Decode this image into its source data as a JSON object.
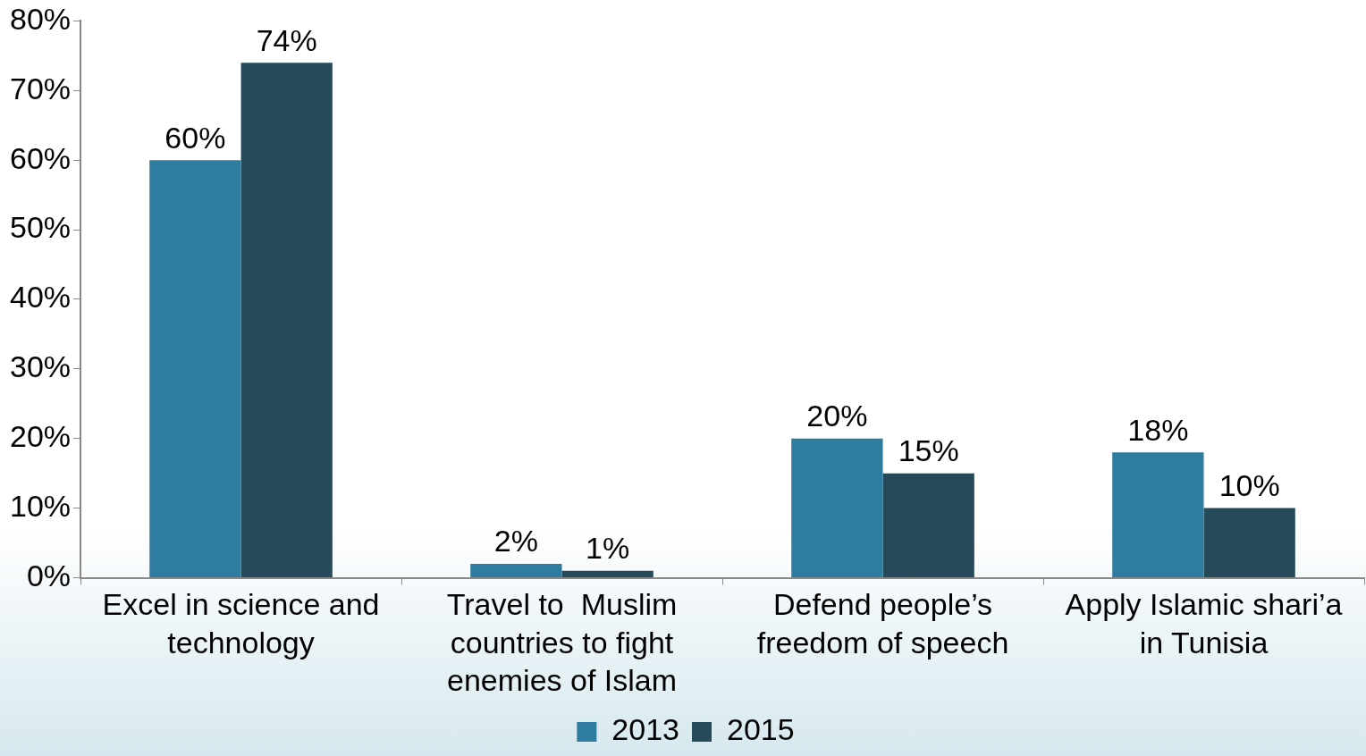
{
  "chart_data": {
    "type": "bar",
    "categories": [
      "Excel in science and technology",
      "Travel to  Muslim countries to fight enemies of Islam",
      "Defend people’s freedom of speech",
      "Apply Islamic shari’a in Tunisia"
    ],
    "series": [
      {
        "name": "2013",
        "color": "#2e7ca0",
        "values": [
          60,
          2,
          20,
          18
        ]
      },
      {
        "name": "2015",
        "color": "#254a5a",
        "values": [
          74,
          1,
          15,
          10
        ]
      }
    ],
    "ylim": [
      0,
      80
    ],
    "yticks": [
      {
        "value": 0,
        "label": "0%"
      },
      {
        "value": 10,
        "label": "10%"
      },
      {
        "value": 20,
        "label": "20%"
      },
      {
        "value": 30,
        "label": "30%"
      },
      {
        "value": 40,
        "label": "40%"
      },
      {
        "value": 50,
        "label": "50%"
      },
      {
        "value": 60,
        "label": "60%"
      },
      {
        "value": 70,
        "label": "70%"
      },
      {
        "value": 80,
        "label": "80%"
      }
    ],
    "value_labels": [
      [
        "60%",
        "2%",
        "20%",
        "18%"
      ],
      [
        "74%",
        "1%",
        "15%",
        "10%"
      ]
    ],
    "grid": false,
    "legend": "bottom"
  }
}
